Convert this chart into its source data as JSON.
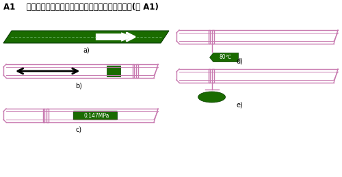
{
  "title": "A1    基本识别色和流向、压力、温度等标识方法参考图(图 A1)",
  "title_fontsize": 8.5,
  "bg_color": "#ffffff",
  "green": "#1a6b00",
  "pink": "#c87ab0",
  "fig_width": 5.0,
  "fig_height": 2.59,
  "dpi": 100,
  "label_a": "a)",
  "label_b": "b)",
  "label_c": "c)",
  "label_d": "d)",
  "label_e": "e)",
  "pressure_label": "0.147MPa",
  "temp_label": "80℃"
}
